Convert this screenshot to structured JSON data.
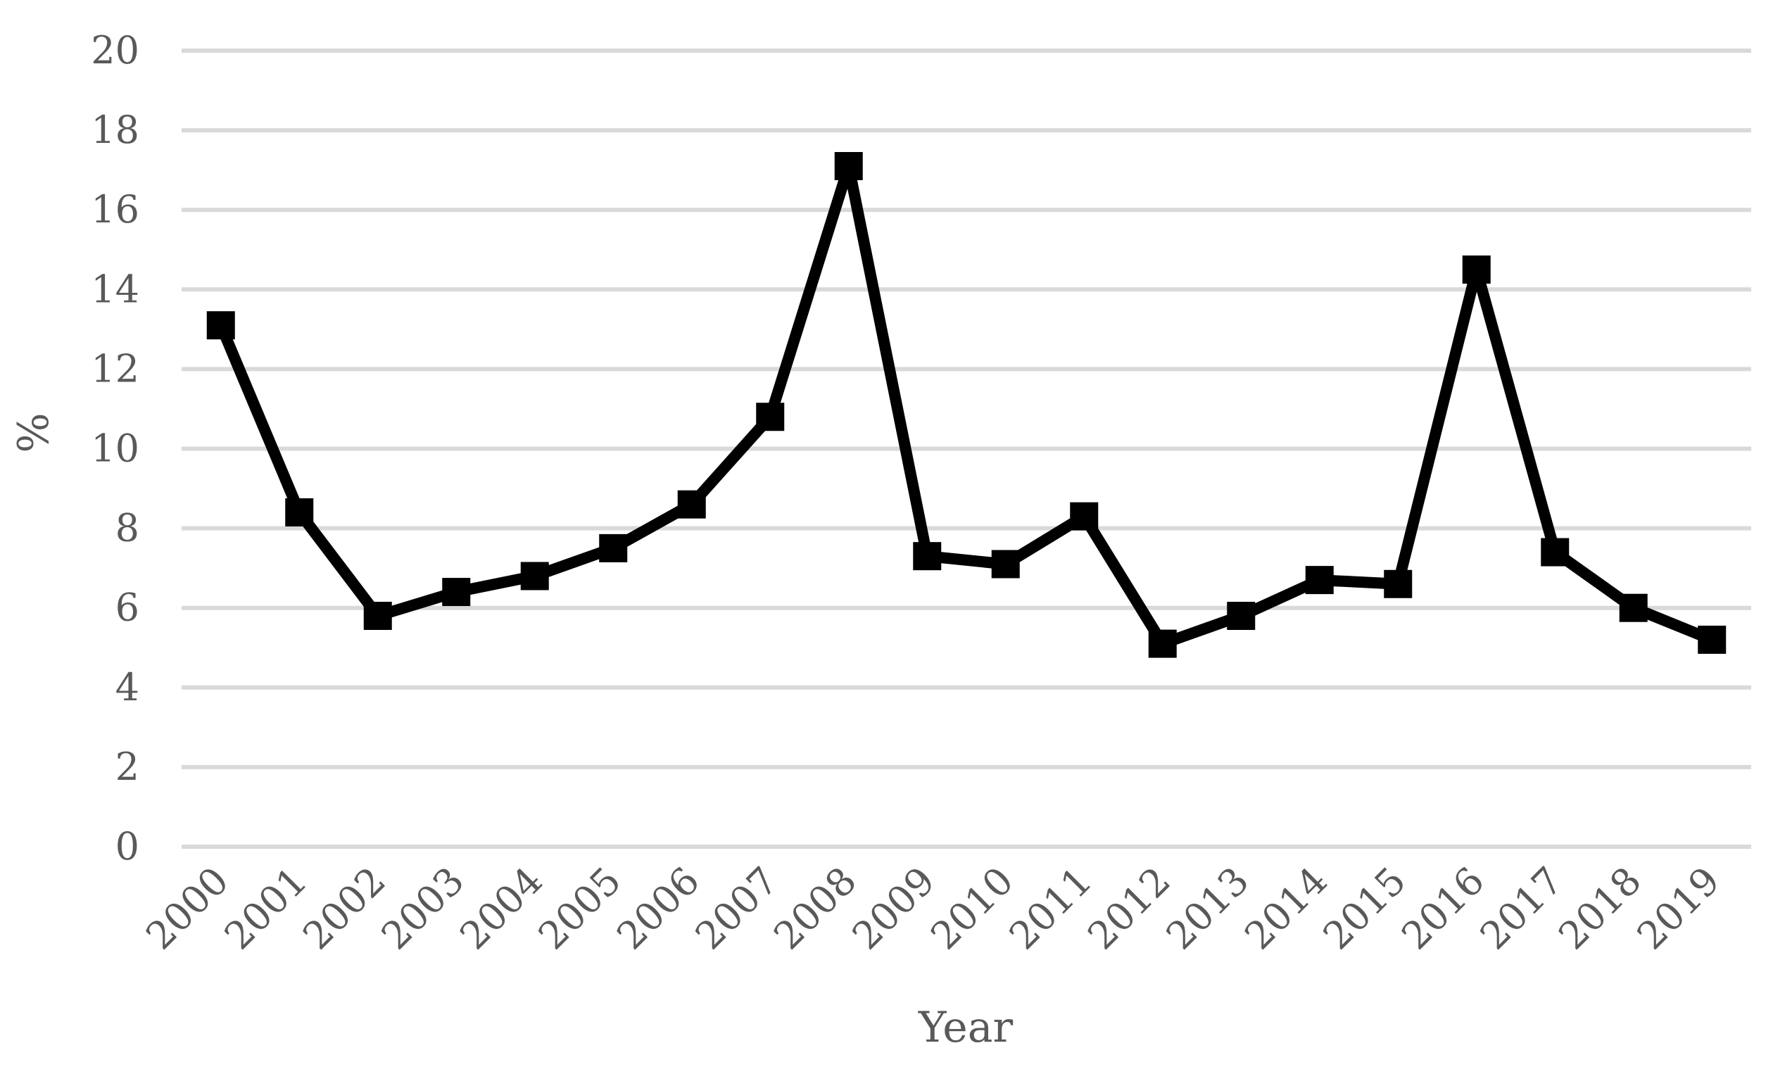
{
  "chart_data": {
    "type": "line",
    "title": "",
    "xlabel": "Year",
    "ylabel": "%",
    "ylim": [
      0,
      20
    ],
    "yticks": [
      0,
      2,
      4,
      6,
      8,
      10,
      12,
      14,
      16,
      18,
      20
    ],
    "grid": "horizontal",
    "legend": "none",
    "categories": [
      "2000",
      "2001",
      "2002",
      "2003",
      "2004",
      "2005",
      "2006",
      "2007",
      "2008",
      "2009",
      "2010",
      "2011",
      "2012",
      "2013",
      "2014",
      "2015",
      "2016",
      "2017",
      "2018",
      "2019"
    ],
    "series": [
      {
        "marker": "square",
        "color": "#000000",
        "values": [
          13.1,
          8.4,
          5.8,
          6.4,
          6.8,
          7.5,
          8.6,
          10.8,
          17.1,
          7.3,
          7.1,
          8.3,
          5.1,
          5.8,
          6.7,
          6.6,
          14.5,
          7.4,
          6.0,
          5.2
        ]
      }
    ],
    "colors": {
      "line": "#000000",
      "grid": "#d9d9d9",
      "text": "#595959"
    }
  }
}
